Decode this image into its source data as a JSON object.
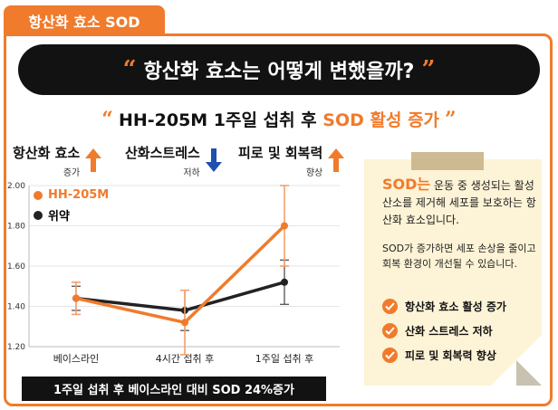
{
  "tab": {
    "label": "항산화 효소 SOD"
  },
  "banner": {
    "open_quote": "“",
    "text": "항산화 효소는 어떻게 변했을까?",
    "close_quote": "”"
  },
  "subtitle": {
    "open_quote": "“",
    "prefix": "HH-205M 1주일 섭취 후 ",
    "highlight": "SOD 활성 증가",
    "close_quote": "”"
  },
  "indicators": [
    {
      "main": "항산화 효소",
      "sub": "증가",
      "direction": "up",
      "color": "#f07b2c"
    },
    {
      "main": "산화스트레스",
      "sub": "저하",
      "direction": "down",
      "color": "#1f4fb0"
    },
    {
      "main": "피로 및 회복력",
      "sub": "향상",
      "direction": "up",
      "color": "#f07b2c"
    }
  ],
  "chart_data": {
    "type": "line",
    "categories": [
      "베이스라인",
      "4시간 섭취 후",
      "1주일 섭취 후"
    ],
    "series": [
      {
        "name": "HH-205M",
        "color": "#f07b2c",
        "values": [
          1.44,
          1.32,
          1.8
        ],
        "err": [
          0.08,
          0.16,
          0.2
        ]
      },
      {
        "name": "위약",
        "color": "#222222",
        "values": [
          1.44,
          1.38,
          1.52
        ],
        "err": [
          0.06,
          0.1,
          0.11
        ]
      }
    ],
    "yticks": [
      "2.00",
      "1.80",
      "1.60",
      "1.40",
      "1.20"
    ],
    "ylim": [
      1.2,
      2.0
    ],
    "grid": true,
    "legend": "top-left"
  },
  "caption": "1주일 섭취 후 베이스라인 대비 SOD 24%증가",
  "note": {
    "highlight": "SOD는",
    "p1_rest": " 운동 중 생성되는 활성산소를 제거해 세포를 보호하는 항산화 효소입니다.",
    "p2": "SOD가 증가하면 세포 손상을 줄이고 회복 환경이 개선될 수 있습니다.",
    "checks": [
      "항산화 효소 활성 증가",
      "산화 스트레스 저하",
      "피로 및 회복력 향상"
    ]
  }
}
